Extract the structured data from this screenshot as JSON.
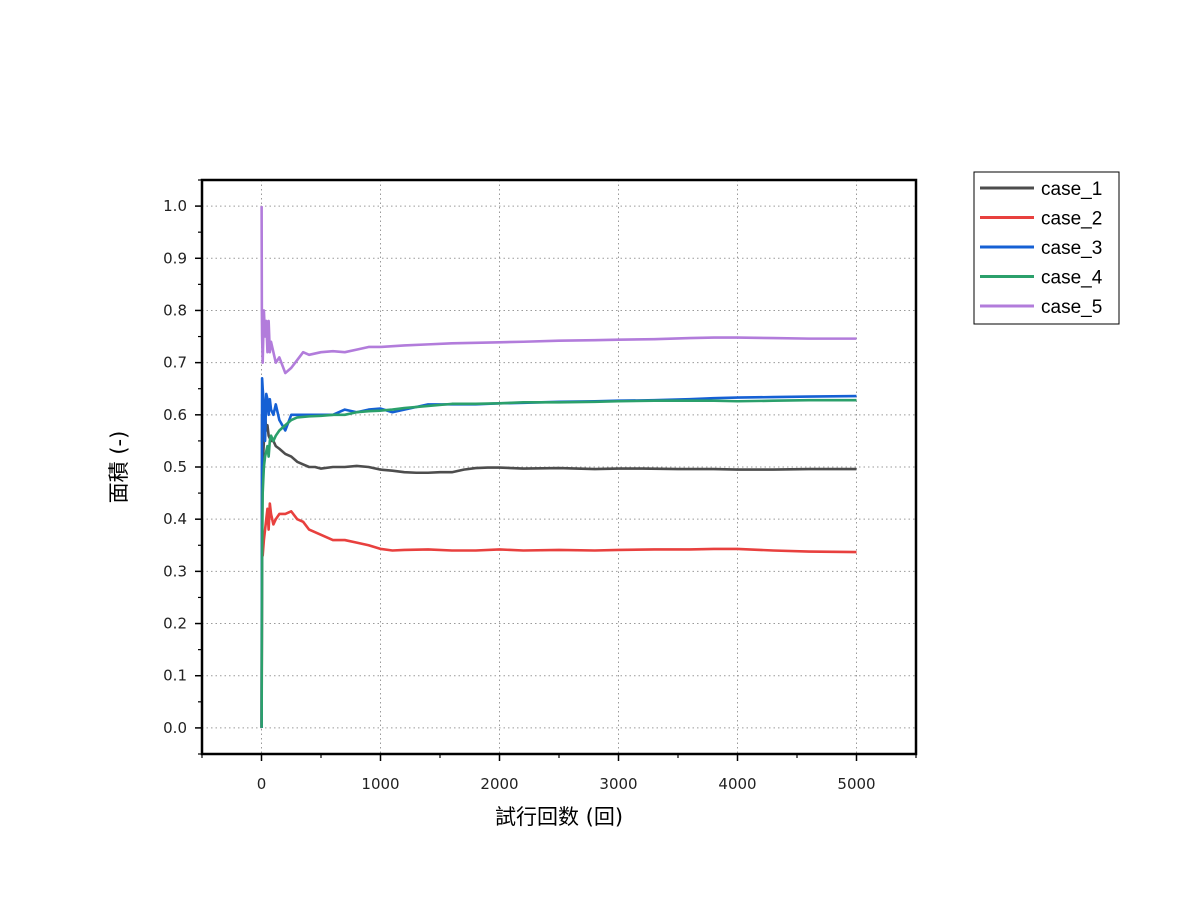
{
  "chart_data": {
    "type": "line",
    "title": "",
    "xlabel": "試行回数 (回)",
    "ylabel": "面積 (-)",
    "xlim": [
      -500,
      5500
    ],
    "ylim": [
      -0.05,
      1.05
    ],
    "xticks": [
      0,
      1000,
      2000,
      3000,
      4000,
      5000
    ],
    "xtick_labels": [
      "0",
      "1000",
      "2000",
      "3000",
      "4000",
      "5000"
    ],
    "yticks": [
      0.0,
      0.1,
      0.2,
      0.3,
      0.4,
      0.5,
      0.6,
      0.7,
      0.8,
      0.9,
      1.0
    ],
    "ytick_labels": [
      "0.0",
      "0.1",
      "0.2",
      "0.3",
      "0.4",
      "0.5",
      "0.6",
      "0.7",
      "0.8",
      "0.9",
      "1.0"
    ],
    "grid": true,
    "legend_position": "outside-top-right",
    "series": [
      {
        "name": "case_1",
        "color": "#4d4d4d",
        "x": [
          1,
          5,
          10,
          20,
          30,
          40,
          50,
          60,
          80,
          100,
          120,
          150,
          200,
          250,
          300,
          350,
          400,
          450,
          500,
          600,
          700,
          800,
          900,
          1000,
          1100,
          1200,
          1300,
          1400,
          1500,
          1600,
          1700,
          1800,
          1900,
          2000,
          2200,
          2500,
          2800,
          3000,
          3200,
          3500,
          3800,
          4000,
          4300,
          4600,
          5000
        ],
        "y": [
          0.0,
          0.6,
          0.5,
          0.55,
          0.6,
          0.57,
          0.58,
          0.56,
          0.55,
          0.55,
          0.54,
          0.535,
          0.525,
          0.52,
          0.51,
          0.505,
          0.5,
          0.5,
          0.497,
          0.5,
          0.5,
          0.502,
          0.5,
          0.495,
          0.493,
          0.49,
          0.489,
          0.489,
          0.49,
          0.49,
          0.495,
          0.498,
          0.499,
          0.499,
          0.497,
          0.498,
          0.496,
          0.497,
          0.497,
          0.496,
          0.496,
          0.495,
          0.495,
          0.496,
          0.496
        ]
      },
      {
        "name": "case_2",
        "color": "#e8403e",
        "x": [
          1,
          5,
          10,
          20,
          30,
          40,
          50,
          60,
          70,
          80,
          100,
          120,
          150,
          200,
          250,
          300,
          350,
          400,
          500,
          600,
          700,
          800,
          900,
          1000,
          1100,
          1200,
          1400,
          1600,
          1800,
          2000,
          2200,
          2500,
          2800,
          3000,
          3300,
          3600,
          3800,
          4000,
          4300,
          4600,
          5000
        ],
        "y": [
          0.0,
          0.4,
          0.33,
          0.36,
          0.38,
          0.4,
          0.42,
          0.38,
          0.43,
          0.41,
          0.39,
          0.4,
          0.41,
          0.41,
          0.415,
          0.4,
          0.395,
          0.38,
          0.37,
          0.36,
          0.36,
          0.355,
          0.35,
          0.343,
          0.34,
          0.341,
          0.342,
          0.34,
          0.34,
          0.342,
          0.34,
          0.341,
          0.34,
          0.341,
          0.342,
          0.342,
          0.343,
          0.343,
          0.34,
          0.338,
          0.337
        ]
      },
      {
        "name": "case_3",
        "color": "#1560d4",
        "x": [
          1,
          5,
          10,
          20,
          30,
          40,
          50,
          60,
          70,
          80,
          100,
          120,
          150,
          200,
          250,
          300,
          400,
          500,
          600,
          700,
          800,
          900,
          1000,
          1100,
          1200,
          1400,
          1600,
          1800,
          2000,
          2200,
          2500,
          2800,
          3000,
          3300,
          3600,
          3800,
          4000,
          4300,
          4600,
          5000
        ],
        "y": [
          0.0,
          0.67,
          0.65,
          0.62,
          0.55,
          0.64,
          0.63,
          0.6,
          0.63,
          0.61,
          0.6,
          0.62,
          0.59,
          0.57,
          0.6,
          0.6,
          0.6,
          0.6,
          0.6,
          0.61,
          0.605,
          0.61,
          0.612,
          0.605,
          0.61,
          0.62,
          0.62,
          0.62,
          0.622,
          0.623,
          0.625,
          0.626,
          0.627,
          0.628,
          0.63,
          0.632,
          0.633,
          0.634,
          0.635,
          0.636
        ]
      },
      {
        "name": "case_4",
        "color": "#2ba06b",
        "x": [
          1,
          5,
          10,
          20,
          30,
          40,
          50,
          60,
          70,
          80,
          100,
          120,
          150,
          200,
          250,
          300,
          400,
          500,
          600,
          700,
          800,
          900,
          1000,
          1100,
          1200,
          1400,
          1600,
          1800,
          2000,
          2200,
          2500,
          2800,
          3000,
          3300,
          3600,
          3800,
          4000,
          4300,
          4600,
          5000
        ],
        "y": [
          0.0,
          0.33,
          0.45,
          0.5,
          0.52,
          0.53,
          0.54,
          0.52,
          0.55,
          0.56,
          0.55,
          0.56,
          0.57,
          0.58,
          0.59,
          0.595,
          0.597,
          0.598,
          0.6,
          0.6,
          0.605,
          0.607,
          0.608,
          0.61,
          0.613,
          0.617,
          0.621,
          0.621,
          0.622,
          0.624,
          0.624,
          0.625,
          0.626,
          0.627,
          0.627,
          0.627,
          0.626,
          0.627,
          0.628,
          0.628
        ]
      },
      {
        "name": "case_5",
        "color": "#b27cdb",
        "x": [
          1,
          3,
          5,
          10,
          20,
          30,
          40,
          50,
          60,
          70,
          80,
          100,
          120,
          150,
          200,
          250,
          300,
          350,
          400,
          500,
          600,
          700,
          800,
          900,
          1000,
          1200,
          1400,
          1600,
          1800,
          2000,
          2200,
          2500,
          2800,
          3000,
          3300,
          3600,
          3800,
          4000,
          4300,
          4600,
          5000
        ],
        "y": [
          1.0,
          0.8,
          0.75,
          0.7,
          0.8,
          0.75,
          0.78,
          0.72,
          0.78,
          0.72,
          0.74,
          0.72,
          0.7,
          0.71,
          0.68,
          0.69,
          0.705,
          0.72,
          0.715,
          0.72,
          0.722,
          0.72,
          0.725,
          0.73,
          0.73,
          0.733,
          0.735,
          0.737,
          0.738,
          0.739,
          0.74,
          0.742,
          0.743,
          0.744,
          0.745,
          0.747,
          0.748,
          0.748,
          0.747,
          0.746,
          0.746
        ]
      }
    ]
  }
}
